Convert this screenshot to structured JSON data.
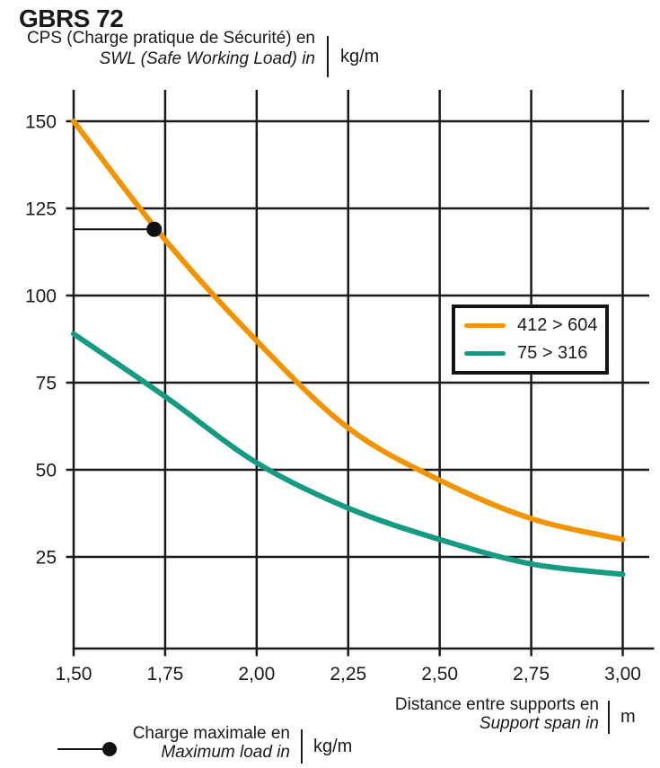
{
  "colors": {
    "grid": "#1a1a1a",
    "text": "#1a1a1a",
    "background": "#ffffff",
    "orange": "#F29400",
    "teal": "#149B82",
    "marker": "#111111"
  },
  "chart_data": {
    "type": "line",
    "title": "GBRS 72",
    "ylabel": {
      "fr": "CPS (Charge pratique de Sécurité) en",
      "en": "SWL (Safe Working Load) in",
      "unit": "kg/m"
    },
    "xlabel": {
      "fr": "Distance entre supports en",
      "en": "Support span in",
      "unit": "m"
    },
    "grid": true,
    "legend_position": "upper-right-inside",
    "x": [
      1.5,
      1.75,
      2.0,
      2.25,
      2.5,
      2.75,
      3.0
    ],
    "x_tick_labels": [
      "1,50",
      "1,75",
      "2,00",
      "2,25",
      "2,50",
      "2,75",
      "3,00"
    ],
    "y_ticks": [
      150,
      125,
      100,
      75,
      50,
      25
    ],
    "xlim": [
      1.5,
      3.07
    ],
    "ylim": [
      -1.5,
      159
    ],
    "series": [
      {
        "name": "412 > 604",
        "color": "#F29400",
        "values": [
          150,
          116,
          87,
          62,
          47,
          36,
          30
        ]
      },
      {
        "name": "75 > 316",
        "color": "#149B82",
        "values": [
          89,
          71,
          52,
          39,
          30,
          23,
          20
        ]
      }
    ],
    "max_load_marker": {
      "x": 1.72,
      "y": 119,
      "label_fr": "Charge maximale en",
      "label_en": "Maximum load in",
      "unit": "kg/m",
      "color": "#111111"
    }
  }
}
